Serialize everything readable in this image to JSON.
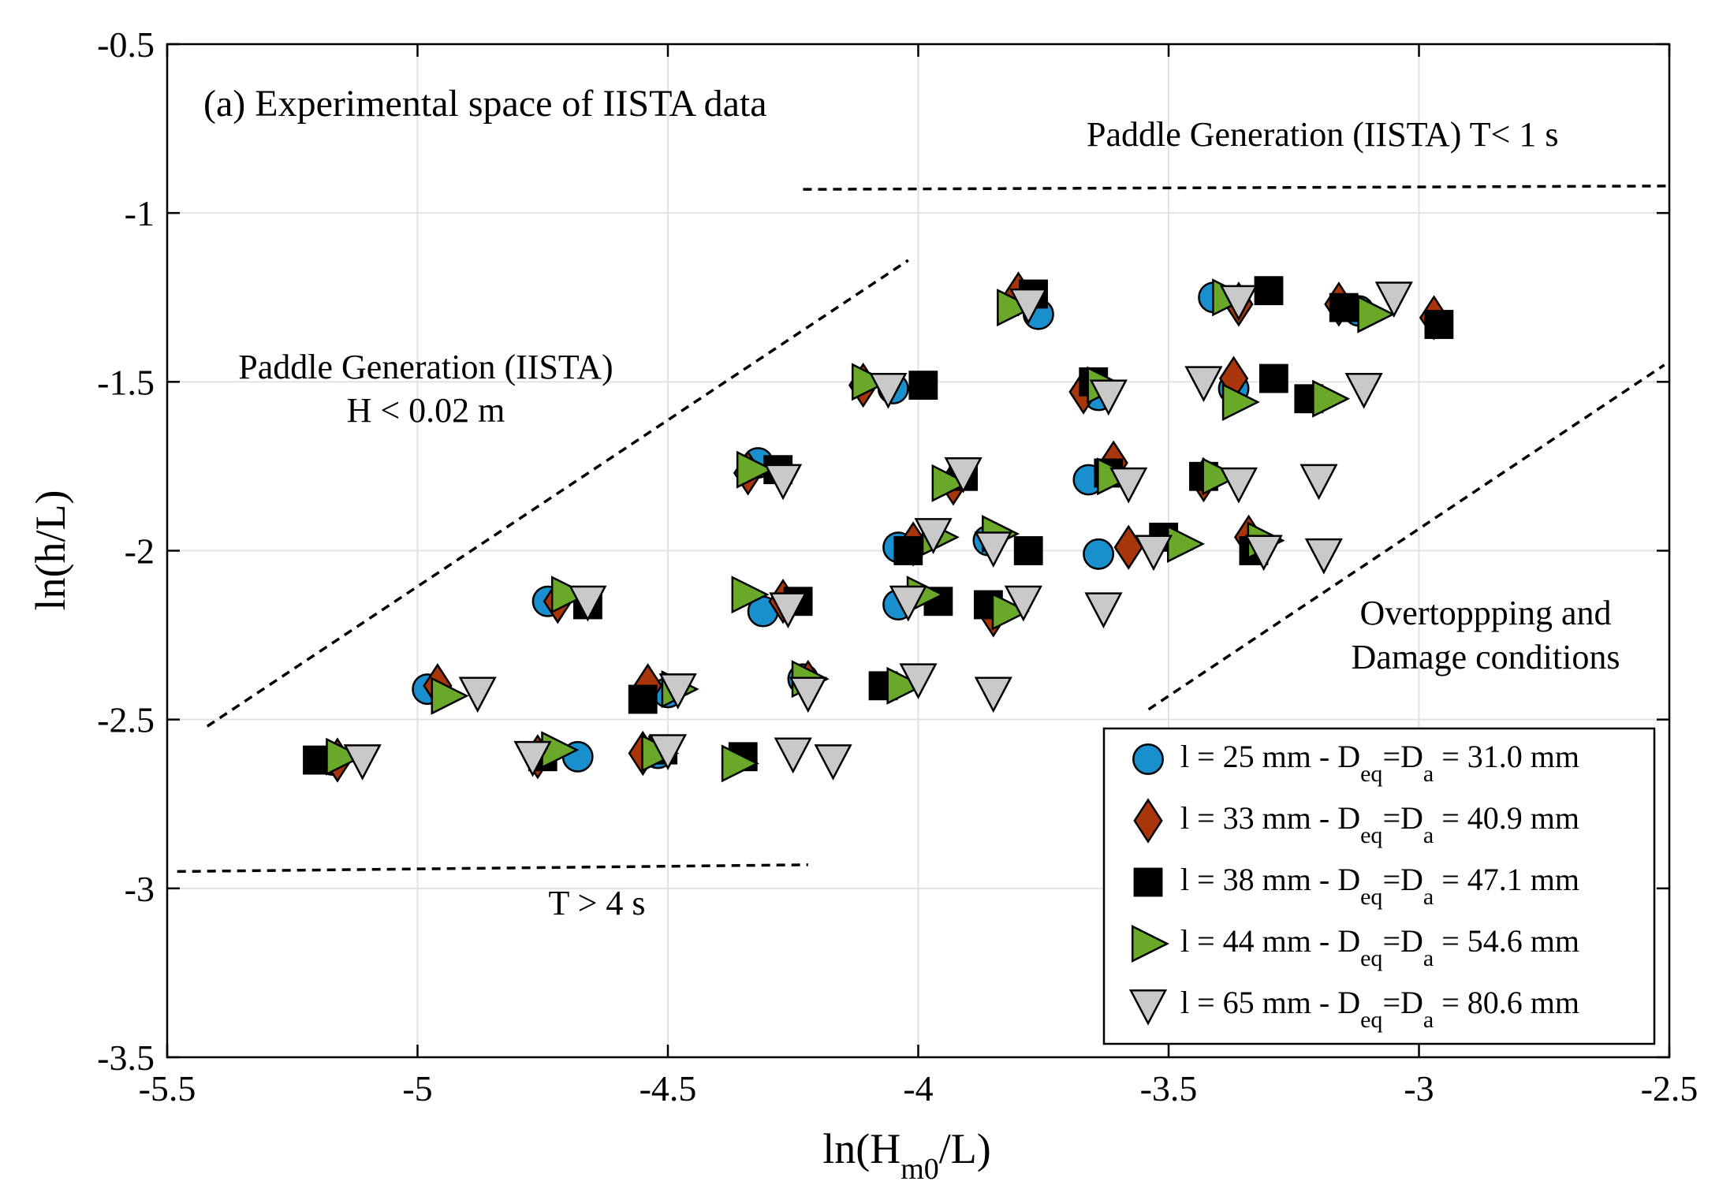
{
  "chart_data": {
    "type": "scatter",
    "title": "",
    "panel_label": "(a) Experimental space of IISTA data",
    "xlabel": {
      "base": "ln(H",
      "sub": "m0",
      "tail": "/L)"
    },
    "ylabel": "ln(h/L)",
    "xlim": [
      -5.5,
      -2.5
    ],
    "ylim": [
      -3.5,
      -0.5
    ],
    "grid": true,
    "x_ticks": [
      -5.5,
      -5,
      -4.5,
      -4,
      -3.5,
      -3,
      -2.5
    ],
    "x_tick_labels": [
      "-5.5",
      "-5",
      "-4.5",
      "-4",
      "-3.5",
      "-3",
      "-2.5"
    ],
    "y_ticks": [
      -0.5,
      -1,
      -1.5,
      -2,
      -2.5,
      -3,
      -3.5
    ],
    "y_tick_labels": [
      "-0.5",
      "-1",
      "-1.5",
      "-2",
      "-2.5",
      "-3",
      "-3.5"
    ],
    "legend_position": "bottom-right",
    "annotations": {
      "paddle_T": "Paddle Generation (IISTA)  T< 1 s",
      "paddle_H_line1": "Paddle Generation (IISTA)",
      "paddle_H_line2": "H < 0.02 m",
      "overtopping_line1": "Overtoppping and",
      "overtopping_line2": "Damage conditions",
      "T_long": "T > 4 s"
    },
    "boundary_lines": [
      {
        "name": "T< 1 s limit",
        "x": [
          -4.23,
          -2.5
        ],
        "y": [
          -0.93,
          -0.92
        ]
      },
      {
        "name": "H < 0.02 m limit",
        "x": [
          -5.42,
          -4.02
        ],
        "y": [
          -2.52,
          -1.14
        ]
      },
      {
        "name": "Overtopping limit",
        "x": [
          -3.54,
          -2.51
        ],
        "y": [
          -2.47,
          -1.45
        ]
      },
      {
        "name": "T > 4 s limit",
        "x": [
          -5.48,
          -4.22
        ],
        "y": [
          -2.95,
          -2.93
        ]
      }
    ],
    "series": [
      {
        "name": "l = 25 mm - D_eq=D_a = 31.0 mm",
        "legend": {
          "pre": "l = 25 mm - D",
          "sub1": "eq",
          "mid": "=D",
          "sub2": "a",
          "post": " = 31.0 mm"
        },
        "marker": "circle",
        "color": "#1a8fce",
        "points": [
          [
            -5.17,
            -2.62
          ],
          [
            -4.98,
            -2.41
          ],
          [
            -4.74,
            -2.15
          ],
          [
            -4.68,
            -2.61
          ],
          [
            -4.52,
            -2.6
          ],
          [
            -4.5,
            -2.42
          ],
          [
            -4.32,
            -1.74
          ],
          [
            -4.31,
            -2.18
          ],
          [
            -4.23,
            -2.38
          ],
          [
            -4.05,
            -1.52
          ],
          [
            -4.04,
            -2.16
          ],
          [
            -4.04,
            -1.99
          ],
          [
            -3.86,
            -1.97
          ],
          [
            -3.76,
            -1.3
          ],
          [
            -3.66,
            -1.79
          ],
          [
            -3.64,
            -2.01
          ],
          [
            -3.64,
            -1.54
          ],
          [
            -3.41,
            -1.25
          ],
          [
            -3.37,
            -1.52
          ],
          [
            -3.12,
            -1.29
          ]
        ]
      },
      {
        "name": "l = 33 mm - D_eq=D_a = 40.9 mm",
        "legend": {
          "pre": "l = 33 mm - D",
          "sub1": "eq",
          "mid": "=D",
          "sub2": "a",
          "post": " = 40.9 mm"
        },
        "marker": "diamond",
        "color": "#a8360a",
        "points": [
          [
            -5.16,
            -2.62
          ],
          [
            -4.96,
            -2.4
          ],
          [
            -4.76,
            -2.61
          ],
          [
            -4.72,
            -2.15
          ],
          [
            -4.55,
            -2.6
          ],
          [
            -4.54,
            -2.4
          ],
          [
            -4.34,
            -1.77
          ],
          [
            -4.27,
            -2.15
          ],
          [
            -4.22,
            -2.39
          ],
          [
            -4.11,
            -1.51
          ],
          [
            -4.01,
            -1.98
          ],
          [
            -3.93,
            -1.8
          ],
          [
            -3.85,
            -2.19
          ],
          [
            -3.8,
            -1.24
          ],
          [
            -3.67,
            -1.53
          ],
          [
            -3.61,
            -1.74
          ],
          [
            -3.58,
            -1.99
          ],
          [
            -3.43,
            -1.79
          ],
          [
            -3.37,
            -1.49
          ],
          [
            -3.36,
            -1.27
          ],
          [
            -3.34,
            -1.96
          ],
          [
            -3.16,
            -1.27
          ],
          [
            -2.97,
            -1.31
          ]
        ]
      },
      {
        "name": "l = 38 mm - D_eq=D_a = 47.1 mm",
        "legend": {
          "pre": "l = 38 mm - D",
          "sub1": "eq",
          "mid": "=D",
          "sub2": "a",
          "post": " = 47.1 mm"
        },
        "marker": "square",
        "color": "#000000",
        "points": [
          [
            -5.2,
            -2.62
          ],
          [
            -4.75,
            -2.61
          ],
          [
            -4.66,
            -2.16
          ],
          [
            -4.55,
            -2.44
          ],
          [
            -4.51,
            -2.59
          ],
          [
            -4.35,
            -2.61
          ],
          [
            -4.28,
            -1.76
          ],
          [
            -4.24,
            -2.15
          ],
          [
            -4.07,
            -2.4
          ],
          [
            -4.02,
            -2.0
          ],
          [
            -3.99,
            -1.51
          ],
          [
            -3.96,
            -2.15
          ],
          [
            -3.91,
            -1.78
          ],
          [
            -3.86,
            -2.16
          ],
          [
            -3.78,
            -2.0
          ],
          [
            -3.77,
            -1.24
          ],
          [
            -3.65,
            -1.5
          ],
          [
            -3.62,
            -1.77
          ],
          [
            -3.51,
            -1.96
          ],
          [
            -3.43,
            -1.78
          ],
          [
            -3.33,
            -2.0
          ],
          [
            -3.3,
            -1.23
          ],
          [
            -3.29,
            -1.49
          ],
          [
            -3.22,
            -1.55
          ],
          [
            -3.15,
            -1.28
          ],
          [
            -2.96,
            -1.33
          ]
        ]
      },
      {
        "name": "l = 44 mm - D_eq=D_a = 54.6 mm",
        "legend": {
          "pre": "l = 44 mm - D",
          "sub1": "eq",
          "mid": "=D",
          "sub2": "a",
          "post": " = 54.6 mm"
        },
        "marker": "triangle-right",
        "color": "#6aa82a",
        "points": [
          [
            -5.15,
            -2.61
          ],
          [
            -4.94,
            -2.43
          ],
          [
            -4.72,
            -2.59
          ],
          [
            -4.7,
            -2.13
          ],
          [
            -4.52,
            -2.6
          ],
          [
            -4.48,
            -2.41
          ],
          [
            -4.34,
            -2.13
          ],
          [
            -4.33,
            -1.76
          ],
          [
            -4.36,
            -2.63
          ],
          [
            -4.22,
            -2.38
          ],
          [
            -4.1,
            -1.5
          ],
          [
            -4.03,
            -2.4
          ],
          [
            -3.99,
            -2.13
          ],
          [
            -3.96,
            -1.96
          ],
          [
            -3.94,
            -1.8
          ],
          [
            -3.84,
            -1.95
          ],
          [
            -3.82,
            -2.18
          ],
          [
            -3.81,
            -1.28
          ],
          [
            -3.63,
            -1.51
          ],
          [
            -3.61,
            -1.78
          ],
          [
            -3.47,
            -1.98
          ],
          [
            -3.4,
            -1.78
          ],
          [
            -3.38,
            -1.25
          ],
          [
            -3.36,
            -1.56
          ],
          [
            -3.31,
            -1.97
          ],
          [
            -3.18,
            -1.55
          ],
          [
            -3.09,
            -1.3
          ]
        ]
      },
      {
        "name": "l = 65 mm - D_eq=D_a = 80.6 mm",
        "legend": {
          "pre": "l = 65 mm - D",
          "sub1": "eq",
          "mid": "=D",
          "sub2": "a",
          "post": " = 80.6 mm"
        },
        "marker": "triangle-down",
        "color": "#c9c9c9",
        "points": [
          [
            -5.11,
            -2.62
          ],
          [
            -4.88,
            -2.42
          ],
          [
            -4.77,
            -2.61
          ],
          [
            -4.66,
            -2.15
          ],
          [
            -4.5,
            -2.59
          ],
          [
            -4.48,
            -2.41
          ],
          [
            -4.27,
            -1.79
          ],
          [
            -4.26,
            -2.17
          ],
          [
            -4.25,
            -2.6
          ],
          [
            -4.22,
            -2.42
          ],
          [
            -4.17,
            -2.62
          ],
          [
            -4.06,
            -1.52
          ],
          [
            -4.0,
            -2.38
          ],
          [
            -4.02,
            -2.15
          ],
          [
            -3.97,
            -1.95
          ],
          [
            -3.91,
            -1.77
          ],
          [
            -3.85,
            -1.99
          ],
          [
            -3.85,
            -2.42
          ],
          [
            -3.79,
            -2.15
          ],
          [
            -3.78,
            -1.27
          ],
          [
            -3.63,
            -2.17
          ],
          [
            -3.62,
            -1.54
          ],
          [
            -3.58,
            -1.8
          ],
          [
            -3.53,
            -2.0
          ],
          [
            -3.43,
            -1.5
          ],
          [
            -3.36,
            -1.8
          ],
          [
            -3.36,
            -1.26
          ],
          [
            -3.31,
            -2.0
          ],
          [
            -3.2,
            -1.79
          ],
          [
            -3.19,
            -2.01
          ],
          [
            -3.11,
            -1.52
          ],
          [
            -3.05,
            -1.25
          ]
        ]
      }
    ]
  }
}
